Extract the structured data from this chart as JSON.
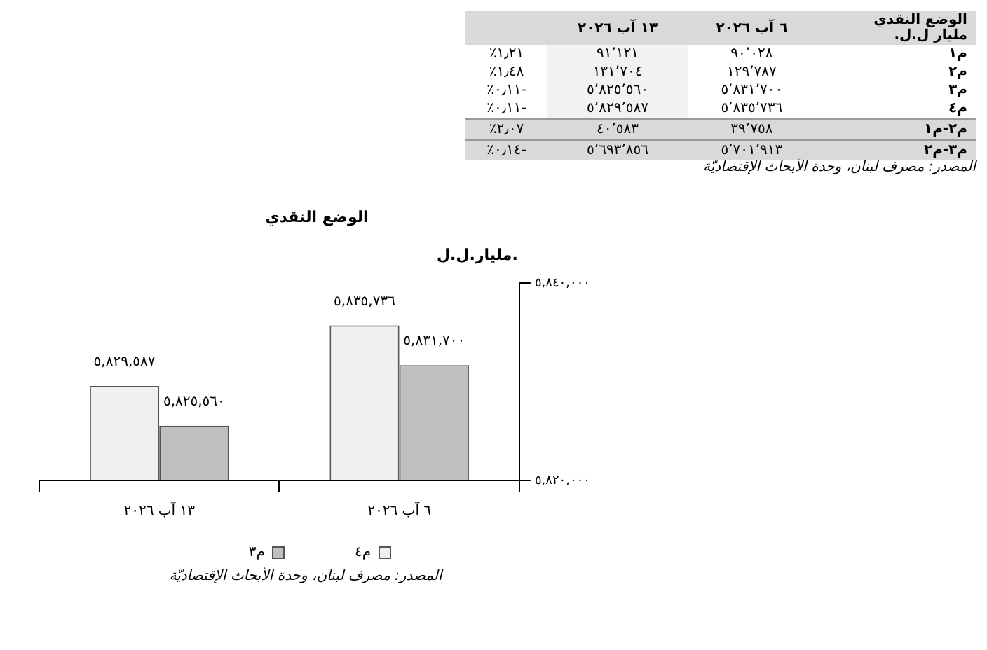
{
  "chart_data": [
    {
      "type": "other",
      "title": "الوضع النقدي",
      "subtitle": "مليار ل.ل.",
      "categories": [
        "٦ آب ٢٠٢٦",
        "١٣ آب ٢٠٢٦",
        null
      ],
      "y_categories": [
        "م١",
        "م٢",
        "م٣",
        "م٤",
        "م٢-م١",
        "م٣-م٢"
      ],
      "cell_labels": [
        [
          "٩٠٬٠٢٨",
          "٩١٬١٢١",
          "١٫٢١٪"
        ],
        [
          "١٢٩٬٧٨٧",
          "١٣١٬٧٠٤",
          "١٫٤٨٪"
        ],
        [
          "٥٬٨٣١٬٧٠٠",
          "٥٬٨٢٥٬٥٦٠",
          "-٠٫١١٪"
        ],
        [
          "٥٬٨٣٥٬٧٣٦",
          "٥٬٨٢٩٬٥٨٧",
          "-٠٫١١٪"
        ],
        [
          "٣٩٬٧٥٨",
          "٤٠٬٥٨٣",
          "٢٫٠٧٪"
        ],
        [
          "٥٬٧٠١٬٩١٣",
          "٥٬٦٩٣٬٨٥٦",
          "-٠٫١٤٪"
        ]
      ],
      "annotations": [
        "المصدر: مصرف لبنان، وحدة الأبحاث الإقتصاديّة"
      ]
    },
    {
      "type": "bar",
      "title": "الوضع النقدي",
      "ylabel": "مليار.ل.ل.",
      "categories": [
        "١٣ آب ٢٠٢٦",
        "٦ آب ٢٠٢٦"
      ],
      "series": [
        {
          "name": "م٤",
          "color": "#f0f0f0",
          "values": [
            5829587,
            5835736
          ],
          "value_labels": [
            "٥,٨٢٩,٥٨٧",
            "٥,٨٣٥,٧٣٦"
          ]
        },
        {
          "name": "م٣",
          "color": "#c0c0c0",
          "values": [
            5825560,
            5831700
          ],
          "value_labels": [
            "٥,٨٢٥,٥٦٠",
            "٥,٨٣١,٧٠٠"
          ]
        }
      ],
      "ylim": [
        5820000,
        5840000
      ],
      "yticks": [
        {
          "value": 5820000,
          "label": "٥,٨٢٠,٠٠٠"
        },
        {
          "value": 5840000,
          "label": "٥,٨٤٠,٠٠٠"
        }
      ],
      "legend": "bottom",
      "annotations": [
        "المصدر: مصرف لبنان، وحدة الأبحاث الإقتصاديّة"
      ]
    }
  ]
}
